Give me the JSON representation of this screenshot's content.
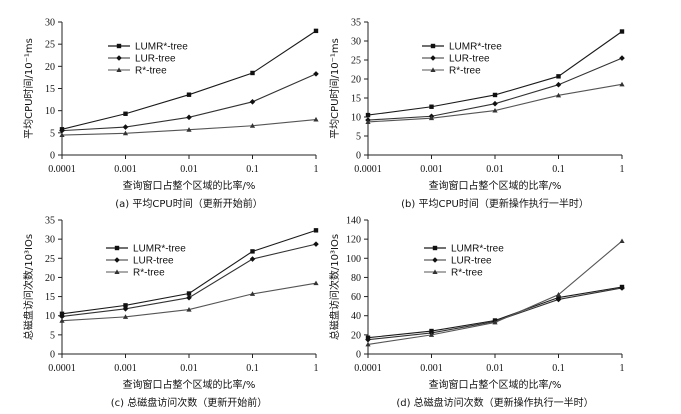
{
  "chart_data": [
    {
      "type": "line",
      "caption": "(a) 平均CPU时间（更新开始前）",
      "xlabel": "查询窗口占整个区域的比率/%",
      "ylabel": "平均CPU时间/10⁻¹ms",
      "x_scale": "log",
      "categories": [
        "0.0001",
        "0.001",
        "0.01",
        "0.1",
        "1"
      ],
      "ylim": [
        0,
        30
      ],
      "yticks": [
        "0",
        "5",
        "10",
        "15",
        "20",
        "25",
        "30"
      ],
      "legend_position": "top-left",
      "series": [
        {
          "name": "LUMR*-tree",
          "marker": "square",
          "values": [
            5.8,
            9.3,
            13.6,
            18.5,
            28
          ]
        },
        {
          "name": "LUR-tree",
          "marker": "diamond",
          "values": [
            5.5,
            6.3,
            8.5,
            12.0,
            18.3
          ]
        },
        {
          "name": "R*-tree",
          "marker": "triangle",
          "values": [
            4.5,
            4.9,
            5.7,
            6.6,
            8.0
          ]
        }
      ]
    },
    {
      "type": "line",
      "caption": "(b) 平均CPU时间（更新操作执行一半时）",
      "xlabel": "查询窗口占整个区域的比率/%",
      "ylabel": "平均CPU时间/10⁻¹ms",
      "x_scale": "log",
      "categories": [
        "0.0001",
        "0.001",
        "0.01",
        "0.1",
        "1"
      ],
      "ylim": [
        0,
        35
      ],
      "yticks": [
        "0",
        "5",
        "10",
        "15",
        "20",
        "25",
        "30",
        "35"
      ],
      "legend_position": "top-left",
      "series": [
        {
          "name": "LUMR*-tree",
          "marker": "square",
          "values": [
            10.5,
            12.7,
            15.8,
            20.7,
            32.5
          ]
        },
        {
          "name": "LUR-tree",
          "marker": "diamond",
          "values": [
            9.2,
            10.2,
            13.5,
            18.5,
            25.5
          ]
        },
        {
          "name": "R*-tree",
          "marker": "triangle",
          "values": [
            8.7,
            9.7,
            11.7,
            15.7,
            18.6
          ]
        }
      ]
    },
    {
      "type": "line",
      "caption": "(c) 总磁盘访问次数（更新开始前）",
      "xlabel": "查询窗口占整个区域的比率/%",
      "ylabel": "总磁盘访问次数/10³IOs",
      "x_scale": "log",
      "categories": [
        "0.0001",
        "0.001",
        "0.01",
        "0.1",
        "1"
      ],
      "ylim": [
        0,
        35
      ],
      "yticks": [
        "0",
        "5",
        "10",
        "15",
        "20",
        "25",
        "30",
        "35"
      ],
      "legend_position": "top-center",
      "series": [
        {
          "name": "LUMR*-tree",
          "marker": "square",
          "values": [
            10.5,
            12.7,
            15.8,
            26.8,
            32.3
          ]
        },
        {
          "name": "LUR-tree",
          "marker": "diamond",
          "values": [
            9.8,
            11.8,
            14.7,
            24.8,
            28.7
          ]
        },
        {
          "name": "R*-tree",
          "marker": "triangle",
          "values": [
            8.7,
            9.7,
            11.6,
            15.7,
            18.5
          ]
        }
      ]
    },
    {
      "type": "line",
      "caption": "(d) 总磁盘访问次数（更新操作执行一半时）",
      "xlabel": "查询窗口占整个区域的比率/%",
      "ylabel": "总磁盘访问次数/10³IOs",
      "x_scale": "log",
      "categories": [
        "0.0001",
        "0.001",
        "0.01",
        "0.1",
        "1"
      ],
      "ylim": [
        0,
        140
      ],
      "yticks": [
        "0",
        "20",
        "40",
        "60",
        "80",
        "100",
        "120",
        "140"
      ],
      "legend_position": "top-left",
      "series": [
        {
          "name": "LUMR*-tree",
          "marker": "square",
          "values": [
            17,
            24,
            35,
            59,
            70
          ]
        },
        {
          "name": "LUR-tree",
          "marker": "diamond",
          "values": [
            15,
            22,
            34,
            57,
            69
          ]
        },
        {
          "name": "R*-tree",
          "marker": "triangle",
          "values": [
            10,
            20,
            33,
            62,
            118
          ]
        }
      ]
    }
  ]
}
